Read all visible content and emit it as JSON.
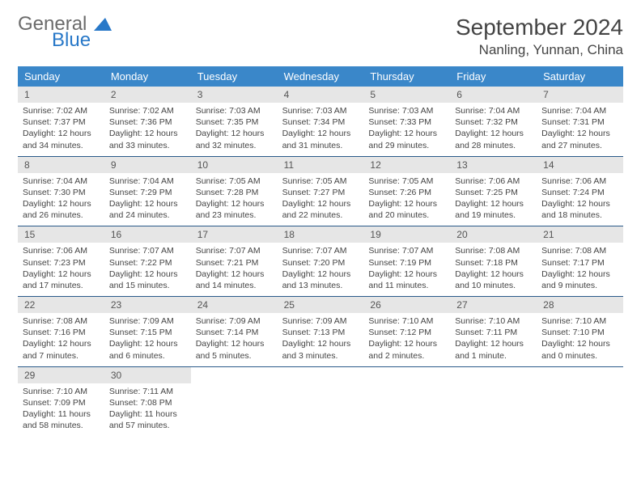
{
  "brand": {
    "part1": "General",
    "part2": "Blue"
  },
  "title": "September 2024",
  "location": "Nanling, Yunnan, China",
  "colors": {
    "header_bg": "#3a87c9",
    "header_fg": "#ffffff",
    "daynum_bg": "#e6e6e6",
    "week_divider": "#2a5a8a",
    "logo_gray": "#6b6b6b",
    "logo_blue": "#2878c8"
  },
  "weekdays": [
    "Sunday",
    "Monday",
    "Tuesday",
    "Wednesday",
    "Thursday",
    "Friday",
    "Saturday"
  ],
  "days": [
    {
      "n": "1",
      "sr": "7:02 AM",
      "ss": "7:37 PM",
      "dl": "12 hours and 34 minutes."
    },
    {
      "n": "2",
      "sr": "7:02 AM",
      "ss": "7:36 PM",
      "dl": "12 hours and 33 minutes."
    },
    {
      "n": "3",
      "sr": "7:03 AM",
      "ss": "7:35 PM",
      "dl": "12 hours and 32 minutes."
    },
    {
      "n": "4",
      "sr": "7:03 AM",
      "ss": "7:34 PM",
      "dl": "12 hours and 31 minutes."
    },
    {
      "n": "5",
      "sr": "7:03 AM",
      "ss": "7:33 PM",
      "dl": "12 hours and 29 minutes."
    },
    {
      "n": "6",
      "sr": "7:04 AM",
      "ss": "7:32 PM",
      "dl": "12 hours and 28 minutes."
    },
    {
      "n": "7",
      "sr": "7:04 AM",
      "ss": "7:31 PM",
      "dl": "12 hours and 27 minutes."
    },
    {
      "n": "8",
      "sr": "7:04 AM",
      "ss": "7:30 PM",
      "dl": "12 hours and 26 minutes."
    },
    {
      "n": "9",
      "sr": "7:04 AM",
      "ss": "7:29 PM",
      "dl": "12 hours and 24 minutes."
    },
    {
      "n": "10",
      "sr": "7:05 AM",
      "ss": "7:28 PM",
      "dl": "12 hours and 23 minutes."
    },
    {
      "n": "11",
      "sr": "7:05 AM",
      "ss": "7:27 PM",
      "dl": "12 hours and 22 minutes."
    },
    {
      "n": "12",
      "sr": "7:05 AM",
      "ss": "7:26 PM",
      "dl": "12 hours and 20 minutes."
    },
    {
      "n": "13",
      "sr": "7:06 AM",
      "ss": "7:25 PM",
      "dl": "12 hours and 19 minutes."
    },
    {
      "n": "14",
      "sr": "7:06 AM",
      "ss": "7:24 PM",
      "dl": "12 hours and 18 minutes."
    },
    {
      "n": "15",
      "sr": "7:06 AM",
      "ss": "7:23 PM",
      "dl": "12 hours and 17 minutes."
    },
    {
      "n": "16",
      "sr": "7:07 AM",
      "ss": "7:22 PM",
      "dl": "12 hours and 15 minutes."
    },
    {
      "n": "17",
      "sr": "7:07 AM",
      "ss": "7:21 PM",
      "dl": "12 hours and 14 minutes."
    },
    {
      "n": "18",
      "sr": "7:07 AM",
      "ss": "7:20 PM",
      "dl": "12 hours and 13 minutes."
    },
    {
      "n": "19",
      "sr": "7:07 AM",
      "ss": "7:19 PM",
      "dl": "12 hours and 11 minutes."
    },
    {
      "n": "20",
      "sr": "7:08 AM",
      "ss": "7:18 PM",
      "dl": "12 hours and 10 minutes."
    },
    {
      "n": "21",
      "sr": "7:08 AM",
      "ss": "7:17 PM",
      "dl": "12 hours and 9 minutes."
    },
    {
      "n": "22",
      "sr": "7:08 AM",
      "ss": "7:16 PM",
      "dl": "12 hours and 7 minutes."
    },
    {
      "n": "23",
      "sr": "7:09 AM",
      "ss": "7:15 PM",
      "dl": "12 hours and 6 minutes."
    },
    {
      "n": "24",
      "sr": "7:09 AM",
      "ss": "7:14 PM",
      "dl": "12 hours and 5 minutes."
    },
    {
      "n": "25",
      "sr": "7:09 AM",
      "ss": "7:13 PM",
      "dl": "12 hours and 3 minutes."
    },
    {
      "n": "26",
      "sr": "7:10 AM",
      "ss": "7:12 PM",
      "dl": "12 hours and 2 minutes."
    },
    {
      "n": "27",
      "sr": "7:10 AM",
      "ss": "7:11 PM",
      "dl": "12 hours and 1 minute."
    },
    {
      "n": "28",
      "sr": "7:10 AM",
      "ss": "7:10 PM",
      "dl": "12 hours and 0 minutes."
    },
    {
      "n": "29",
      "sr": "7:10 AM",
      "ss": "7:09 PM",
      "dl": "11 hours and 58 minutes."
    },
    {
      "n": "30",
      "sr": "7:11 AM",
      "ss": "7:08 PM",
      "dl": "11 hours and 57 minutes."
    }
  ],
  "labels": {
    "sunrise": "Sunrise:",
    "sunset": "Sunset:",
    "daylight": "Daylight:"
  }
}
